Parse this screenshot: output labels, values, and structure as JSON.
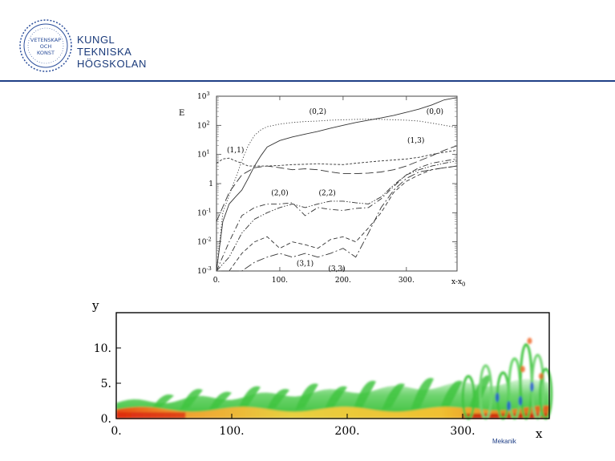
{
  "header": {
    "seal_text": [
      "VETENSKAP",
      "OCH",
      "KONST"
    ],
    "institution": [
      "KUNGL",
      "TEKNISKA",
      "HÖGSKOLAN"
    ],
    "seal_color": "#2a4d9a",
    "rule_color": "#1f3f86"
  },
  "footer": {
    "dept": "Mekanik"
  },
  "chart_data": [
    {
      "type": "line",
      "title": "",
      "ylabel": "E",
      "xlabel": "x-x0",
      "xlabel_main": "x-x",
      "xlabel_sub": "0",
      "yscale": "log",
      "ylim": [
        0.001,
        1000
      ],
      "xlim": [
        0,
        380
      ],
      "xticks": [
        "0.",
        "100.",
        "200.",
        "300."
      ],
      "ytick_exps": [
        "3",
        "2",
        "1",
        "0",
        "-1",
        "-2",
        "-3"
      ],
      "yticks": [
        "10",
        "10",
        "10",
        "1",
        "10",
        "10",
        "10"
      ],
      "legend": "none",
      "grid": false,
      "series": [
        {
          "name": "(0,0)",
          "style": "solid",
          "x": [
            0,
            10,
            20,
            30,
            40,
            50,
            60,
            70,
            80,
            100,
            120,
            140,
            160,
            180,
            200,
            220,
            240,
            260,
            280,
            300,
            320,
            340,
            360,
            380
          ],
          "y": [
            0.001,
            0.05,
            0.2,
            0.35,
            0.6,
            1.5,
            4,
            9,
            18,
            30,
            40,
            50,
            62,
            80,
            100,
            125,
            150,
            180,
            220,
            280,
            360,
            500,
            750,
            900
          ]
        },
        {
          "name": "(0,2)",
          "style": "dotted",
          "x": [
            0,
            10,
            20,
            30,
            40,
            50,
            60,
            70,
            80,
            100,
            120,
            140,
            160,
            180,
            200,
            220,
            240,
            260,
            280,
            300,
            320,
            340,
            360,
            380
          ],
          "y": [
            0.001,
            0.1,
            0.4,
            1.5,
            6,
            20,
            45,
            70,
            90,
            110,
            125,
            135,
            140,
            150,
            155,
            160,
            162,
            160,
            155,
            150,
            140,
            120,
            100,
            85
          ]
        },
        {
          "name": "(1,1)",
          "style": "short-dash",
          "x": [
            0,
            10,
            20,
            30,
            40,
            50,
            60,
            80,
            100,
            120,
            140,
            160,
            180,
            200,
            220,
            240,
            260,
            280,
            300,
            320,
            340,
            360,
            380
          ],
          "y": [
            5,
            7,
            7.5,
            6,
            5,
            4,
            4,
            4,
            4.2,
            4.5,
            4.6,
            4.8,
            4.6,
            4.5,
            5,
            5.5,
            6,
            6.5,
            7,
            8,
            10,
            12,
            14
          ]
        },
        {
          "name": "(1,3)",
          "style": "long-dash",
          "x": [
            0,
            20,
            40,
            60,
            80,
            100,
            120,
            140,
            160,
            180,
            200,
            220,
            240,
            260,
            280,
            300,
            320,
            340,
            360,
            380
          ],
          "y": [
            0.05,
            0.5,
            2,
            3.5,
            4,
            3.5,
            3,
            3.2,
            3,
            2.5,
            2.2,
            2.2,
            2.3,
            2.5,
            3,
            4,
            6,
            9,
            14,
            20
          ]
        },
        {
          "name": "(2,0)",
          "style": "dash-dot",
          "x": [
            0,
            20,
            40,
            60,
            80,
            100,
            120,
            140,
            160,
            180,
            200,
            220,
            240,
            260,
            280,
            300,
            320,
            340,
            360,
            380
          ],
          "y": [
            0.001,
            0.01,
            0.08,
            0.15,
            0.2,
            0.2,
            0.22,
            0.08,
            0.15,
            0.13,
            0.12,
            0.14,
            0.15,
            0.3,
            0.8,
            2,
            3.5,
            5,
            6,
            7
          ]
        },
        {
          "name": "(2,2)",
          "style": "dash-dot-dot",
          "x": [
            0,
            20,
            40,
            60,
            80,
            100,
            120,
            140,
            160,
            180,
            200,
            220,
            240,
            260,
            280,
            300,
            320,
            340,
            360,
            380
          ],
          "y": [
            0.001,
            0.003,
            0.02,
            0.06,
            0.1,
            0.15,
            0.2,
            0.15,
            0.2,
            0.25,
            0.25,
            0.22,
            0.2,
            0.35,
            0.9,
            2,
            3,
            4,
            5,
            6
          ]
        },
        {
          "name": "(3,1)",
          "style": "dash",
          "x": [
            0,
            20,
            40,
            60,
            80,
            100,
            120,
            140,
            160,
            180,
            200,
            220,
            240,
            260,
            280,
            300,
            320,
            340,
            360,
            380
          ],
          "y": [
            0.001,
            0.001,
            0.004,
            0.01,
            0.015,
            0.006,
            0.01,
            0.008,
            0.006,
            0.012,
            0.015,
            0.01,
            0.03,
            0.1,
            0.5,
            1.2,
            2,
            3,
            3.5,
            4
          ]
        },
        {
          "name": "(3,3)",
          "style": "long-dash-dot",
          "x": [
            0,
            20,
            40,
            60,
            80,
            100,
            120,
            140,
            160,
            180,
            200,
            220,
            240,
            260,
            280,
            300,
            320,
            340,
            360,
            380
          ],
          "y": [
            0.001,
            0.001,
            0.001,
            0.002,
            0.003,
            0.004,
            0.003,
            0.004,
            0.003,
            0.004,
            0.006,
            0.003,
            0.02,
            0.15,
            0.6,
            1.5,
            2.5,
            3,
            3.5,
            4
          ]
        }
      ],
      "annotations": [
        {
          "text": "(0,2)",
          "x": 160,
          "y": 250
        },
        {
          "text": "(0,0)",
          "x": 345,
          "y": 250
        },
        {
          "text": "(1,1)",
          "x": 30,
          "y": 12
        },
        {
          "text": "(1,3)",
          "x": 315,
          "y": 25
        },
        {
          "text": "(2,0)",
          "x": 100,
          "y": 0.4
        },
        {
          "text": "(2,2)",
          "x": 175,
          "y": 0.4
        },
        {
          "text": "(3,1)",
          "x": 140,
          "y": 0.0015
        },
        {
          "text": "(3,3)",
          "x": 190,
          "y": 0.001
        }
      ]
    },
    {
      "type": "heatmap",
      "title": "",
      "xlabel": "x",
      "ylabel": "y",
      "xlim": [
        0,
        375
      ],
      "ylim": [
        0,
        15
      ],
      "xticks": [
        "0.",
        "100.",
        "200.",
        "300."
      ],
      "yticks": [
        "0.",
        "5.",
        "10."
      ],
      "colors": [
        "#ffffff",
        "#5fd45f",
        "#d8e84a",
        "#f0a030",
        "#d82010",
        "#2050e0"
      ],
      "grid": false
    }
  ]
}
